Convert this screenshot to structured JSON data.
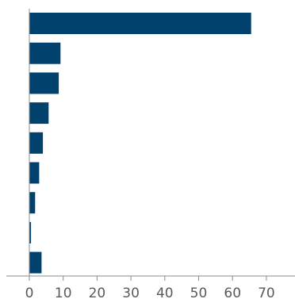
{
  "chart_data": {
    "type": "bar",
    "orientation": "horizontal",
    "title": "",
    "xlabel": "",
    "ylabel": "",
    "categories": [
      "",
      "",
      "",
      "",
      "",
      "",
      "",
      "",
      ""
    ],
    "values": [
      65.5,
      9.2,
      8.7,
      5.7,
      4.0,
      2.9,
      1.7,
      0.5,
      3.6
    ],
    "xlim": [
      0,
      75
    ],
    "xticks": [
      0,
      10,
      20,
      30,
      40,
      50,
      60,
      70
    ],
    "grid": false,
    "legend": "none",
    "bar_color": "#00416e",
    "axis_color": "#8c8c8c",
    "tick_label_color": "#5a5a5a"
  }
}
